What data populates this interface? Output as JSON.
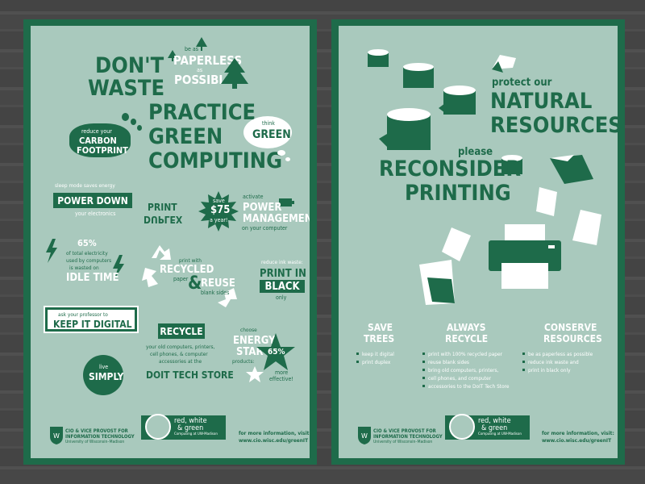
{
  "poster1": {
    "dont_waste_1": "DON'T",
    "dont_waste_2": "WASTE",
    "paperless_pre": "be as",
    "paperless_1": "PAPERLESS",
    "paperless_mid": "as",
    "paperless_2": "POSSIBLE",
    "practice_1": "PRACTICE",
    "practice_2": "GREEN",
    "practice_3": "COMPUTING",
    "think": "think",
    "think_green": "GREEN",
    "carbon_pre": "reduce your",
    "carbon_1": "CARBON",
    "carbon_2": "FOOTPRINT",
    "sleep": "sleep mode saves energy",
    "power_down": "POWER DOWN",
    "your_electronics": "your electronics",
    "print": "PRINT",
    "duplex": "DUPLEX",
    "save_1": "save",
    "save_2": "$75",
    "save_3": "a year!",
    "activate": "activate",
    "power_mgmt_1": "POWER",
    "power_mgmt_2": "MANAGEMENT",
    "on_computer": "on your computer",
    "pct65": "65%",
    "idle_desc_1": "of total electricity",
    "idle_desc_2": "used by computers",
    "idle_desc_3": "is wasted on",
    "idle_time": "IDLE TIME",
    "print_with": "print with",
    "recycled": "RECYCLED",
    "paper": "paper",
    "amp": "&",
    "reuse": "REUSE",
    "blank_sides": "blank sides",
    "reduce_ink": "reduce ink waste:",
    "print_in": "PRINT IN",
    "black": "BLACK",
    "only": "only",
    "ask_prof": "ask your professor to",
    "keep_digital": "KEEP IT DIGITAL",
    "recycle": "RECYCLE",
    "recycle_desc_1": "your old computers, printers,",
    "recycle_desc_2": "cell phones, & computer",
    "recycle_desc_3": "accessories at the",
    "doit": "DOIT TECH STORE",
    "choose": "choose",
    "energy_star_1": "ENERGY",
    "energy_star_2": "STAR",
    "products": "products:",
    "star_pct": "65%",
    "more_effective_1": "more",
    "more_effective_2": "effective!",
    "live": "live",
    "simply": "SIMPLY"
  },
  "poster2": {
    "protect": "protect our",
    "natural": "NATURAL",
    "resources": "RESOURCES",
    "please": "please",
    "reconsider": "RECONSIDER",
    "printing": "PRINTING",
    "col1_title_1": "SAVE",
    "col1_title_2": "TREES",
    "col1_items": [
      "keep it digital",
      "print duplex"
    ],
    "col2_title_1": "ALWAYS",
    "col2_title_2": "RECYCLE",
    "col2_items": [
      "print with 100% recycled paper",
      "reuse blank sides",
      "bring old computers, printers,",
      "cell phones, and computer",
      "accessories to the DoIT Tech Store"
    ],
    "col3_title_1": "CONSERVE",
    "col3_title_2": "RESOURCES",
    "col3_items": [
      "be as paperless as possible",
      "reduce ink waste and",
      "print in black only"
    ]
  },
  "footer": {
    "cio_1": "CIO & VICE PROVOST FOR",
    "cio_2": "INFORMATION TECHNOLOGY",
    "cio_3": "University of Wisconsin–Madison",
    "rwg_1": "red, white",
    "rwg_2": "& green",
    "rwg_3": "Computing at UW-Madison",
    "more_info": "for more information, visit:",
    "url": "www.cio.wisc.edu/greenIT"
  },
  "colors": {
    "dark_green": "#1e6b4a",
    "light_green": "#a9c9bd",
    "white": "#ffffff"
  }
}
